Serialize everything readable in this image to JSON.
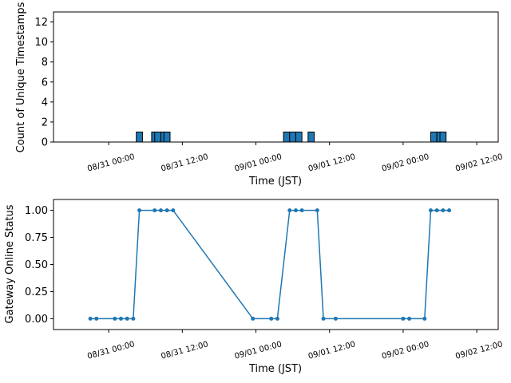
{
  "chart_data": [
    {
      "type": "bar",
      "xlabel": "Time (JST)",
      "ylabel": "Count of Unique Timestamps",
      "ylim": [
        0,
        13
      ],
      "yticks": [
        0,
        2,
        4,
        6,
        8,
        10,
        12
      ],
      "xlim": [
        "08/30 15:00",
        "09/02 15:30"
      ],
      "xticks": [
        "08/31 00:00",
        "08/31 12:00",
        "09/01 00:00",
        "09/01 12:00",
        "09/02 00:00",
        "09/02 12:00"
      ],
      "bar_color": "#1f77b4",
      "bar_width_hours": 1,
      "x": [
        "08/31 04:30",
        "08/31 07:00",
        "08/31 07:30",
        "08/31 08:30",
        "08/31 09:00",
        "09/01 04:30",
        "09/01 05:30",
        "09/01 06:30",
        "09/01 08:30",
        "09/02 04:30",
        "09/02 05:30",
        "09/02 06:00"
      ],
      "values": [
        1,
        1,
        1,
        1,
        1,
        1,
        1,
        1,
        1,
        1,
        1,
        1
      ]
    },
    {
      "type": "line",
      "xlabel": "Time (JST)",
      "ylabel": "Gateway Online Status",
      "ylim": [
        -0.1,
        1.1
      ],
      "yticks": [
        "0.00",
        "0.25",
        "0.50",
        "0.75",
        "1.00"
      ],
      "xlim": [
        "08/30 15:00",
        "09/02 15:30"
      ],
      "xticks": [
        "08/31 00:00",
        "08/31 12:00",
        "09/01 00:00",
        "09/01 12:00",
        "09/02 00:00",
        "09/02 12:00"
      ],
      "line_color": "#1f77b4",
      "marker": "circle",
      "x": [
        "08/30 21:00",
        "08/30 22:00",
        "08/31 01:00",
        "08/31 02:00",
        "08/31 03:00",
        "08/31 04:00",
        "08/31 05:00",
        "08/31 07:30",
        "08/31 08:30",
        "08/31 09:30",
        "08/31 10:30",
        "08/31 23:30",
        "09/01 02:30",
        "09/01 03:30",
        "09/01 05:30",
        "09/01 06:30",
        "09/01 07:30",
        "09/01 10:00",
        "09/01 11:00",
        "09/01 13:00",
        "09/02 00:00",
        "09/02 01:00",
        "09/02 03:30",
        "09/02 04:30",
        "09/02 05:30",
        "09/02 06:30",
        "09/02 07:30"
      ],
      "y": [
        0,
        0,
        0,
        0,
        0,
        0,
        1,
        1,
        1,
        1,
        1,
        0,
        0,
        0,
        1,
        1,
        1,
        1,
        0,
        0,
        0,
        0,
        0,
        1,
        1,
        1,
        1
      ]
    }
  ]
}
